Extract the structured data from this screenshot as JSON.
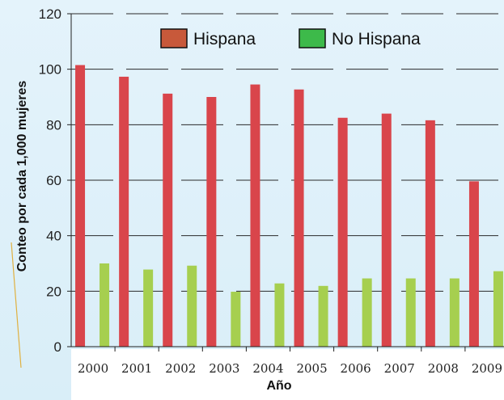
{
  "chart_data": {
    "type": "bar",
    "title": "",
    "xlabel": "Año",
    "ylabel": "Conteo por cada  1,000 mujeres",
    "ylim": [
      0,
      120
    ],
    "yticks": [
      "0",
      "20",
      "40",
      "60",
      "80",
      "100",
      "120"
    ],
    "categories": [
      "2000",
      "2001",
      "2002",
      "2003",
      "2004",
      "2005",
      "2006",
      "2007",
      "2008",
      "2009"
    ],
    "series": [
      {
        "name": "Hispana",
        "color": "#d9454b",
        "values": [
          101.5,
          97.3,
          91.2,
          90.0,
          94.5,
          92.7,
          82.5,
          84.0,
          81.6,
          59.6
        ]
      },
      {
        "name": "No Hispana",
        "color": "#a6cf4f",
        "values": [
          30.0,
          27.8,
          29.2,
          19.8,
          22.8,
          21.9,
          24.6,
          24.6,
          24.6,
          27.2
        ]
      }
    ],
    "legend": {
      "position": "top",
      "swatch_colors": [
        "#c8593a",
        "#3dba4a"
      ]
    },
    "grid": true,
    "background_color": "#e2f2fa"
  }
}
